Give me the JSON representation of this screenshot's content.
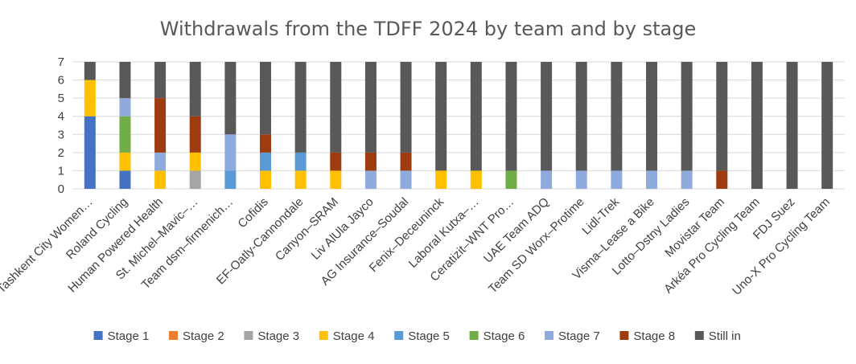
{
  "chart_data": {
    "type": "bar",
    "stacked": true,
    "title": "Withdrawals from the TDFF 2024 by team and by stage",
    "xlabel": "",
    "ylabel": "",
    "ylim": [
      0,
      7
    ],
    "yticks": [
      0,
      1,
      2,
      3,
      4,
      5,
      6,
      7
    ],
    "grid": true,
    "legend_position": "bottom",
    "categories": [
      "Tashkent City Women…",
      "Roland Cycling",
      "Human Powered Health",
      "St. Michel–Mavic–…",
      "Team dsm–firmenich…",
      "Cofidis",
      "EF-Oatly-Cannondale",
      "Canyon–SRAM",
      "Liv AlUla Jayco",
      "AG Insurance–Soudal",
      "Fenix–Deceuninck",
      "Laboral Kutxa–…",
      "Ceratizit–WNT Pro…",
      "UAE Team ADQ",
      "Team SD Worx–Protime",
      "Lidl-Trek",
      "Visma–Lease a Bike",
      "Lotto–Dstny Ladies",
      "Movistar Team",
      "Arkéa Pro Cycling Team",
      "FDJ Suez",
      "Uno-X Pro Cycling Team"
    ],
    "series": [
      {
        "name": "Stage 1",
        "color": "#4472c4",
        "values": [
          4,
          1,
          0,
          0,
          0,
          0,
          0,
          0,
          0,
          0,
          0,
          0,
          0,
          0,
          0,
          0,
          0,
          0,
          0,
          0,
          0,
          0
        ]
      },
      {
        "name": "Stage 2",
        "color": "#ed7d31",
        "values": [
          0,
          0,
          0,
          0,
          0,
          0,
          0,
          0,
          0,
          0,
          0,
          0,
          0,
          0,
          0,
          0,
          0,
          0,
          0,
          0,
          0,
          0
        ]
      },
      {
        "name": "Stage 3",
        "color": "#a5a5a5",
        "values": [
          0,
          0,
          0,
          1,
          0,
          0,
          0,
          0,
          0,
          0,
          0,
          0,
          0,
          0,
          0,
          0,
          0,
          0,
          0,
          0,
          0,
          0
        ]
      },
      {
        "name": "Stage 4",
        "color": "#ffc000",
        "values": [
          2,
          1,
          1,
          1,
          0,
          1,
          1,
          1,
          0,
          0,
          1,
          1,
          0,
          0,
          0,
          0,
          0,
          0,
          0,
          0,
          0,
          0
        ]
      },
      {
        "name": "Stage 5",
        "color": "#5b9bd5",
        "values": [
          0,
          0,
          0,
          0,
          1,
          1,
          1,
          0,
          0,
          0,
          0,
          0,
          0,
          0,
          0,
          0,
          0,
          0,
          0,
          0,
          0,
          0
        ]
      },
      {
        "name": "Stage 6",
        "color": "#70ad47",
        "values": [
          0,
          2,
          0,
          0,
          0,
          0,
          0,
          0,
          0,
          0,
          0,
          0,
          1,
          0,
          0,
          0,
          0,
          0,
          0,
          0,
          0,
          0
        ]
      },
      {
        "name": "Stage 7",
        "color": "#8faadc",
        "values": [
          0,
          1,
          1,
          0,
          2,
          0,
          0,
          0,
          1,
          1,
          0,
          0,
          0,
          1,
          1,
          1,
          1,
          1,
          0,
          0,
          0,
          0
        ]
      },
      {
        "name": "Stage 8",
        "color": "#9e3b0f",
        "values": [
          0,
          0,
          3,
          2,
          0,
          1,
          0,
          1,
          1,
          1,
          0,
          0,
          0,
          0,
          0,
          0,
          0,
          0,
          1,
          0,
          0,
          0
        ]
      },
      {
        "name": "Still in",
        "color": "#595959",
        "values": [
          1,
          2,
          2,
          3,
          4,
          4,
          5,
          5,
          5,
          5,
          6,
          6,
          6,
          6,
          6,
          6,
          6,
          6,
          6,
          7,
          7,
          7
        ]
      }
    ]
  }
}
